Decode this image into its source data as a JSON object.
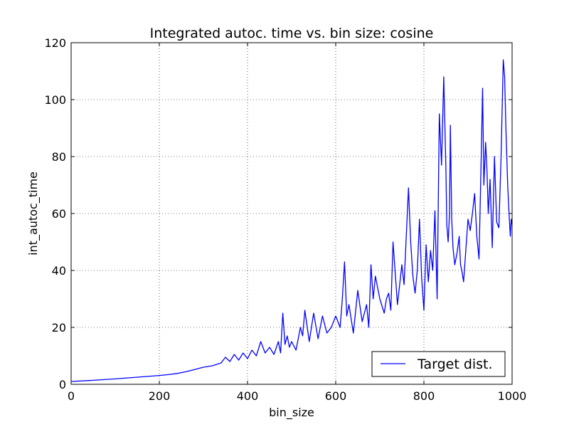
{
  "chart_data": {
    "type": "line",
    "title": "Integrated autoc. time vs. bin size: cosine",
    "xlabel": "bin_size",
    "ylabel": "int_autoc_time",
    "xlim": [
      0,
      1000
    ],
    "ylim": [
      0,
      120
    ],
    "xticks": [
      0,
      200,
      400,
      600,
      800,
      1000
    ],
    "yticks": [
      0,
      20,
      40,
      60,
      80,
      100,
      120
    ],
    "grid": true,
    "legend_position": "lower-right",
    "series": [
      {
        "name": "Target dist.",
        "color": "#0000ff",
        "x": [
          1,
          50,
          100,
          150,
          200,
          220,
          240,
          260,
          280,
          300,
          320,
          340,
          350,
          360,
          370,
          380,
          390,
          400,
          410,
          420,
          430,
          440,
          450,
          460,
          470,
          475,
          480,
          485,
          490,
          495,
          500,
          510,
          520,
          525,
          530,
          540,
          550,
          560,
          570,
          580,
          590,
          600,
          610,
          615,
          620,
          625,
          630,
          640,
          650,
          660,
          670,
          675,
          680,
          685,
          690,
          700,
          710,
          715,
          720,
          725,
          730,
          740,
          750,
          755,
          760,
          765,
          770,
          775,
          780,
          785,
          790,
          795,
          800,
          805,
          810,
          815,
          820,
          825,
          830,
          835,
          840,
          845,
          850,
          852,
          855,
          858,
          860,
          863,
          866,
          870,
          875,
          880,
          883,
          886,
          890,
          895,
          900,
          905,
          910,
          915,
          920,
          925,
          930,
          933,
          936,
          940,
          943,
          946,
          950,
          955,
          960,
          965,
          970,
          975,
          980,
          983,
          986,
          990,
          993,
          996,
          998,
          1000
        ],
        "values": [
          1,
          1.4,
          1.9,
          2.5,
          3.1,
          3.4,
          3.8,
          4.4,
          5.2,
          6,
          6.5,
          7.5,
          9.5,
          8,
          10.5,
          8.5,
          11,
          9,
          12,
          10,
          15,
          11,
          13,
          10.5,
          15,
          11,
          25,
          14,
          17,
          13,
          15,
          12,
          20,
          17,
          26,
          15,
          25,
          16,
          24,
          18,
          20,
          24,
          20,
          30,
          43,
          24,
          28,
          18,
          33,
          22,
          28,
          20,
          42,
          30,
          38,
          30,
          25,
          30,
          32,
          26,
          50,
          28,
          42,
          35,
          52,
          69,
          50,
          38,
          32,
          40,
          58,
          37,
          26,
          49,
          36,
          47,
          40,
          61,
          30,
          95,
          77,
          108,
          75,
          56,
          50,
          60,
          91,
          58,
          48,
          42,
          46,
          52,
          42,
          40,
          36,
          47,
          58,
          54,
          60,
          67,
          52,
          44,
          80,
          104,
          70,
          85,
          75,
          60,
          72,
          48,
          80,
          57,
          55,
          80,
          114,
          108,
          90,
          70,
          60,
          52,
          58,
          56
        ]
      }
    ]
  }
}
